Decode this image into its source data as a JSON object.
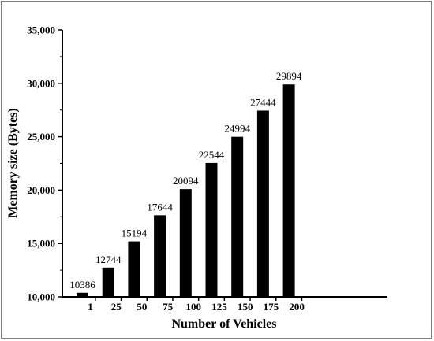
{
  "chart_data": {
    "type": "bar",
    "xlabel": "Number of Vehicles",
    "ylabel": "Memory size (Bytes)",
    "categories": [
      "1",
      "25",
      "50",
      "75",
      "100",
      "125",
      "150",
      "175",
      "200"
    ],
    "values": [
      10386,
      12744,
      15194,
      17644,
      20094,
      22544,
      24994,
      27444,
      29894
    ],
    "data_labels": [
      "10386",
      "12744",
      "15194",
      "17644",
      "20094",
      "22544",
      "24994",
      "27444",
      "29894"
    ],
    "ylim": [
      10000,
      35000
    ],
    "yticks": [
      10000,
      15000,
      20000,
      25000,
      30000,
      35000
    ],
    "ytick_labels": [
      "10,000",
      "15,000",
      "20,000",
      "25,000",
      "30,000",
      "35,000"
    ],
    "bar_color": "#000000",
    "grid": false,
    "legend": false
  }
}
